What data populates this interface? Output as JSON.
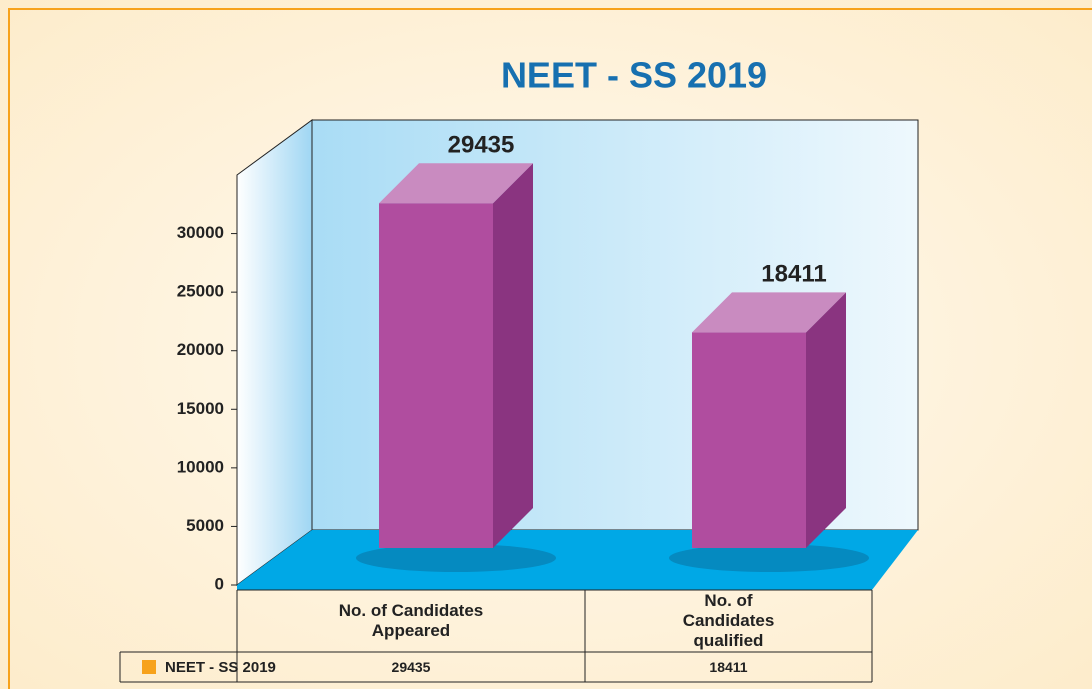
{
  "chart_data": {
    "type": "bar3d",
    "title": "NEET - SS 2019",
    "categories": [
      "No. of Candidates Appeared",
      "No. of Candidates qualified"
    ],
    "series": [
      {
        "name": "NEET - SS 2019",
        "color": "#f7a21b",
        "bar_color": "#b04d9f",
        "values": [
          29435,
          18411
        ]
      }
    ],
    "ylim": [
      0,
      35000
    ],
    "yticks": [
      0,
      5000,
      10000,
      15000,
      20000,
      25000,
      30000
    ],
    "grid": false
  }
}
